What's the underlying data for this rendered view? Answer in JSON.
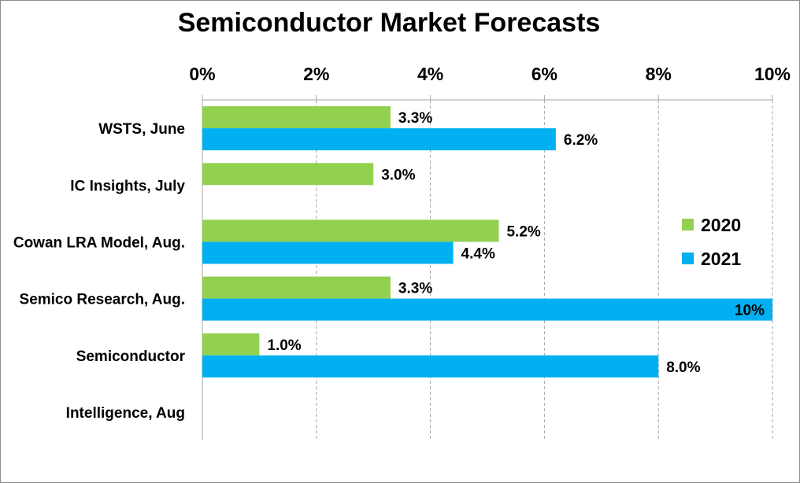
{
  "chart_data": {
    "type": "bar",
    "orientation": "horizontal",
    "title": "Semiconductor Market Forecasts",
    "xlabel": "",
    "ylabel": "",
    "xlim": [
      0,
      10
    ],
    "x_ticks": [
      "0%",
      "2%",
      "4%",
      "6%",
      "8%",
      "10%"
    ],
    "x_axis_position": "top",
    "grid": true,
    "categories": [
      "WSTS, June",
      "IC Insights, July",
      "Cowan LRA Model, Aug.",
      "Semico Research, Aug.",
      "Semiconductor",
      "Intelligence, Aug"
    ],
    "series": [
      {
        "name": "2020",
        "color": "#92d050",
        "values": [
          3.3,
          3.0,
          5.2,
          3.3,
          1.0,
          null
        ],
        "labels": [
          "3.3%",
          "3.0%",
          "5.2%",
          "3.3%",
          "1.0%",
          null
        ]
      },
      {
        "name": "2021",
        "color": "#00b0f0",
        "values": [
          6.2,
          null,
          4.4,
          10,
          8.0,
          null
        ],
        "labels": [
          "6.2%",
          null,
          "4.4%",
          "10%",
          "8.0%",
          null
        ]
      }
    ],
    "legend_position": "right"
  }
}
